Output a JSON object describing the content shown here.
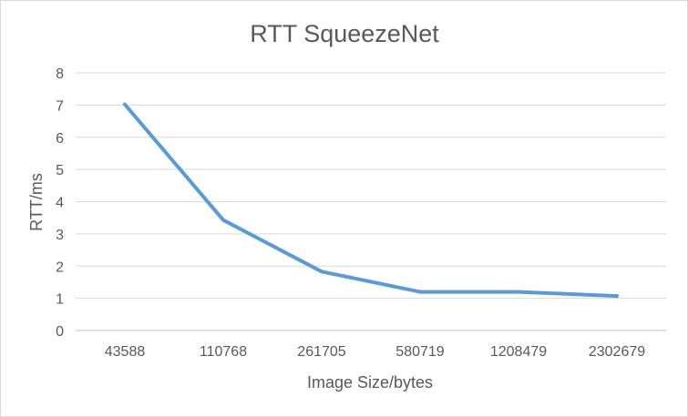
{
  "chart_data": {
    "type": "line",
    "title": "RTT SqueezeNet",
    "xlabel": "Image Size/bytes",
    "ylabel": "RTT/ms",
    "categories": [
      "43588",
      "110768",
      "261705",
      "580719",
      "1208479",
      "2302679"
    ],
    "series": [
      {
        "values": [
          7.02,
          3.43,
          1.83,
          1.2,
          1.2,
          1.07
        ]
      }
    ],
    "ylim": [
      0,
      8
    ],
    "yticks": [
      0,
      1,
      2,
      3,
      4,
      5,
      6,
      7,
      8
    ],
    "grid": true,
    "legend": "none"
  },
  "colors": {
    "series_line": "#5b9bd5",
    "grid": "#d9d9d9",
    "text": "#595959"
  }
}
